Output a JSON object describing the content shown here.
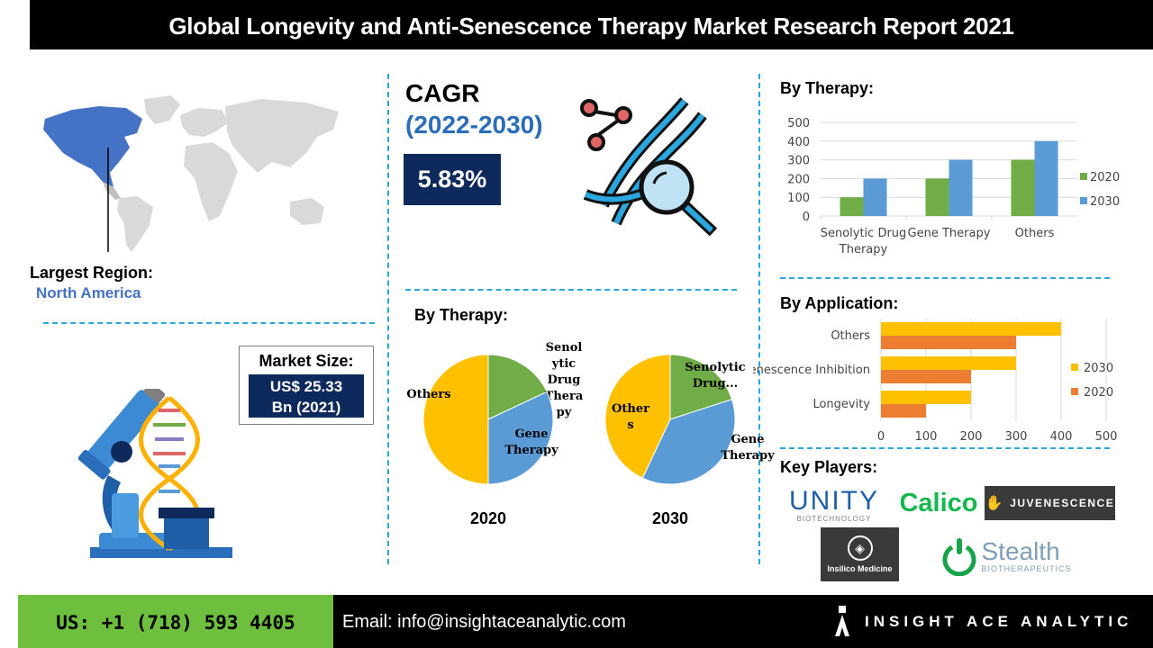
{
  "header": {
    "title": "Global Longevity and Anti-Senescence Therapy Market Research Report 2021"
  },
  "region": {
    "label": "Largest Region:",
    "value": "North America"
  },
  "market_size": {
    "label": "Market Size:",
    "value_line1": "US$ 25.33",
    "value_line2": "Bn (2021)"
  },
  "cagr": {
    "title": "CAGR",
    "years": "(2022-2030)",
    "value": "5.83%"
  },
  "sections": {
    "by_therapy_bar": "By Therapy:",
    "by_therapy_pie": "By Therapy:",
    "by_application": "By Application:",
    "key_players": "Key Players:"
  },
  "key_players": {
    "unity": "UNITY",
    "unity_sub": "BIOTECHNOLOGY",
    "calico": "Calico",
    "juvenescence": "JUVENESCENCE",
    "insilico": "Insilico Medicine",
    "stealth": "Stealth",
    "stealth_sub": "BIOTHERAPEUTICS"
  },
  "footer": {
    "phone": "US: +1 (718) 593 4405",
    "email": "Email: info@insightaceanalytic.com",
    "brand": "INSIGHT ACE ANALYTIC"
  },
  "colors": {
    "green": "#70ad47",
    "blue": "#5b9bd5",
    "yellow": "#ffc000",
    "orange": "#ed7d31",
    "navy": "#0e2a5c",
    "accent_blue": "#2a6ebb",
    "map_highlight": "#4472c4"
  },
  "chart_data": [
    {
      "type": "bar",
      "section": "By Therapy:",
      "categories": [
        "Senolytic Drug Therapy",
        "Gene Therapy",
        "Others"
      ],
      "category_lines": [
        [
          "Senolytic Drug",
          "Therapy"
        ],
        [
          "Gene Therapy"
        ],
        [
          "Others"
        ]
      ],
      "series": [
        {
          "name": "2020",
          "values": [
            100,
            200,
            300
          ],
          "color": "#70ad47"
        },
        {
          "name": "2030",
          "values": [
            200,
            300,
            400
          ],
          "color": "#5b9bd5"
        }
      ],
      "ylim": [
        0,
        500
      ],
      "yticks": [
        0,
        100,
        200,
        300,
        400,
        500
      ],
      "grid": true,
      "legend": "right"
    },
    {
      "type": "pie",
      "section": "By Therapy:",
      "year": "2020",
      "slices": [
        {
          "label": "Senolytic Drug Therapy",
          "label_lines": [
            "Senol",
            "ytic",
            "Drug",
            "Thera",
            "py"
          ],
          "value": 18,
          "color": "#70ad47"
        },
        {
          "label": "Gene Therapy",
          "label_lines": [
            "Gene",
            "Therapy"
          ],
          "value": 32,
          "color": "#5b9bd5"
        },
        {
          "label": "Others",
          "label_lines": [
            "Others"
          ],
          "value": 50,
          "color": "#ffc000"
        }
      ]
    },
    {
      "type": "pie",
      "section": "By Therapy:",
      "year": "2030",
      "slices": [
        {
          "label": "Senolytic Drug Therapy",
          "label_lines": [
            "Senolytic",
            "Drug..."
          ],
          "value": 20,
          "color": "#70ad47"
        },
        {
          "label": "Gene Therapy",
          "label_lines": [
            "Gene",
            "Therapy"
          ],
          "value": 37,
          "color": "#5b9bd5"
        },
        {
          "label": "Others",
          "label_lines": [
            "Other",
            "s"
          ],
          "value": 43,
          "color": "#ffc000"
        }
      ]
    },
    {
      "type": "bar",
      "orientation": "horizontal",
      "section": "By Application:",
      "categories": [
        "Others",
        "Senescence Inhibition",
        "Longevity"
      ],
      "series": [
        {
          "name": "2030",
          "values": [
            400,
            300,
            200
          ],
          "color": "#ffc000"
        },
        {
          "name": "2020",
          "values": [
            300,
            200,
            100
          ],
          "color": "#ed7d31"
        }
      ],
      "xlim": [
        0,
        500
      ],
      "xticks": [
        0,
        100,
        200,
        300,
        400,
        500
      ],
      "grid": true,
      "legend": "right"
    }
  ]
}
